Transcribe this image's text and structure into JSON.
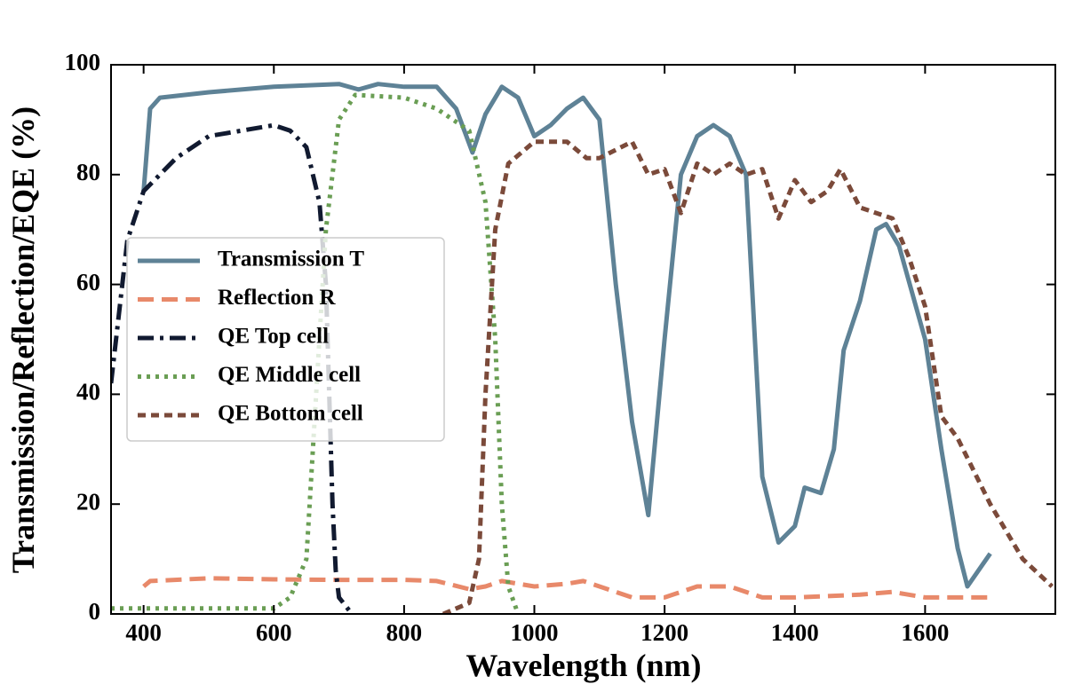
{
  "chart_data": {
    "type": "line",
    "xlabel": "Wavelength (nm)",
    "ylabel": "Transmission/Reflection/EQE (%)",
    "xlim": [
      350,
      1800
    ],
    "ylim": [
      0,
      100
    ],
    "xticks": [
      400,
      600,
      800,
      1000,
      1200,
      1400,
      1600
    ],
    "yticks": [
      0,
      20,
      40,
      60,
      80,
      100
    ],
    "grid": false,
    "legend": "center left",
    "series": [
      {
        "name": "Transmission T",
        "color": "#5e8296",
        "linestyle": "solid",
        "x": [
          400,
          410,
          425,
          500,
          600,
          700,
          730,
          760,
          800,
          850,
          880,
          905,
          925,
          950,
          975,
          1000,
          1025,
          1050,
          1075,
          1100,
          1125,
          1150,
          1175,
          1200,
          1225,
          1250,
          1275,
          1300,
          1325,
          1350,
          1375,
          1400,
          1415,
          1440,
          1460,
          1475,
          1500,
          1525,
          1540,
          1560,
          1600,
          1625,
          1650,
          1665,
          1700
        ],
        "values": [
          77,
          92,
          94,
          95,
          96,
          96.5,
          95.5,
          96.5,
          96,
          96,
          92,
          84,
          91,
          96,
          94,
          87,
          89,
          92,
          94,
          90,
          60,
          35,
          18,
          50,
          80,
          87,
          89,
          87,
          80,
          25,
          13,
          16,
          23,
          22,
          30,
          48,
          57,
          70,
          71,
          67,
          50,
          30,
          12,
          5,
          11
        ]
      },
      {
        "name": "Reflection R",
        "color": "#e8896a",
        "linestyle": "dashed",
        "x": [
          400,
          410,
          500,
          600,
          700,
          800,
          850,
          900,
          925,
          950,
          1000,
          1050,
          1075,
          1100,
          1150,
          1200,
          1250,
          1300,
          1350,
          1400,
          1500,
          1550,
          1600,
          1700
        ],
        "values": [
          5,
          6,
          6.5,
          6.3,
          6.2,
          6.2,
          6,
          4.5,
          5,
          6,
          5,
          5.5,
          6,
          5,
          3,
          3,
          5,
          5,
          3,
          3,
          3.5,
          4,
          3,
          3
        ]
      },
      {
        "name": "QE Top cell",
        "color": "#111a30",
        "linestyle": "dashdot",
        "x": [
          350,
          375,
          400,
          450,
          500,
          550,
          600,
          625,
          650,
          670,
          680,
          685,
          690,
          695,
          700,
          720
        ],
        "values": [
          42,
          68,
          77,
          83,
          87,
          88,
          89,
          88,
          85,
          75,
          60,
          40,
          20,
          8,
          3,
          0
        ]
      },
      {
        "name": "QE Middle cell",
        "color": "#6a9e54",
        "linestyle": "dotted",
        "x": [
          350,
          600,
          625,
          650,
          665,
          680,
          700,
          725,
          800,
          850,
          900,
          925,
          940,
          950,
          960,
          975
        ],
        "values": [
          1,
          1,
          3,
          10,
          40,
          70,
          90,
          94.5,
          94,
          92,
          88,
          75,
          50,
          20,
          5,
          0
        ]
      },
      {
        "name": "QE Bottom cell",
        "color": "#7b4a3a",
        "linestyle": "densedash",
        "x": [
          860,
          900,
          915,
          925,
          940,
          960,
          1000,
          1050,
          1080,
          1100,
          1150,
          1175,
          1200,
          1225,
          1250,
          1275,
          1300,
          1325,
          1350,
          1375,
          1400,
          1425,
          1450,
          1470,
          1500,
          1525,
          1550,
          1575,
          1600,
          1625,
          1650,
          1700,
          1750,
          1795
        ],
        "values": [
          0,
          2,
          10,
          40,
          70,
          82,
          86,
          86,
          83,
          83,
          86,
          80,
          81,
          73,
          82,
          80,
          82,
          80,
          81,
          72,
          79,
          75,
          77,
          81,
          74,
          73,
          72,
          65,
          56,
          36,
          32,
          20,
          10,
          5
        ]
      }
    ]
  }
}
